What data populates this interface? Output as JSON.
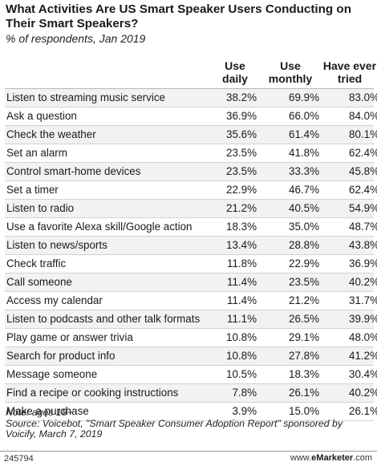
{
  "title": "What Activities Are US Smart Speaker Users Conducting on Their Smart Speakers?",
  "subtitle": "% of respondents, Jan 2019",
  "columns": [
    "Use daily",
    "Use monthly",
    "Have ever tried"
  ],
  "chart_data": {
    "type": "table",
    "title": "What Activities Are US Smart Speaker Users Conducting on Their Smart Speakers?",
    "subtitle": "% of respondents, Jan 2019",
    "columns": [
      "Use daily",
      "Use monthly",
      "Have ever tried"
    ],
    "rows": [
      {
        "label": "Listen to streaming music service",
        "values": [
          "38.2%",
          "69.9%",
          "83.0%"
        ]
      },
      {
        "label": "Ask a question",
        "values": [
          "36.9%",
          "66.0%",
          "84.0%"
        ]
      },
      {
        "label": "Check the weather",
        "values": [
          "35.6%",
          "61.4%",
          "80.1%"
        ]
      },
      {
        "label": "Set an alarm",
        "values": [
          "23.5%",
          "41.8%",
          "62.4%"
        ]
      },
      {
        "label": "Control smart-home devices",
        "values": [
          "23.5%",
          "33.3%",
          "45.8%"
        ]
      },
      {
        "label": "Set a timer",
        "values": [
          "22.9%",
          "46.7%",
          "62.4%"
        ]
      },
      {
        "label": "Listen to radio",
        "values": [
          "21.2%",
          "40.5%",
          "54.9%"
        ]
      },
      {
        "label": "Use a favorite Alexa skill/Google action",
        "values": [
          "18.3%",
          "35.0%",
          "48.7%"
        ]
      },
      {
        "label": "Listen to news/sports",
        "values": [
          "13.4%",
          "28.8%",
          "43.8%"
        ]
      },
      {
        "label": "Check traffic",
        "values": [
          "11.8%",
          "22.9%",
          "36.9%"
        ]
      },
      {
        "label": "Call someone",
        "values": [
          "11.4%",
          "23.5%",
          "40.2%"
        ]
      },
      {
        "label": "Access my calendar",
        "values": [
          "11.4%",
          "21.2%",
          "31.7%"
        ]
      },
      {
        "label": "Listen to podcasts and other talk formats",
        "values": [
          "11.1%",
          "26.5%",
          "39.9%"
        ]
      },
      {
        "label": "Play game or answer trivia",
        "values": [
          "10.8%",
          "29.1%",
          "48.0%"
        ]
      },
      {
        "label": "Search for product info",
        "values": [
          "10.8%",
          "27.8%",
          "41.2%"
        ]
      },
      {
        "label": "Message someone",
        "values": [
          "10.5%",
          "18.3%",
          "30.4%"
        ]
      },
      {
        "label": "Find a recipe or cooking instructions",
        "values": [
          "7.8%",
          "26.1%",
          "40.2%"
        ]
      },
      {
        "label": "Make a purchase",
        "values": [
          "3.9%",
          "15.0%",
          "26.1%"
        ]
      }
    ]
  },
  "notes": {
    "note": "Note: ages 18+",
    "source": "Source: Voicebot, \"Smart Speaker Consumer Adoption Report\" sponsored by Voicify, March 7, 2019"
  },
  "footer": {
    "id": "245794",
    "brand_prefix": "www.",
    "brand_name": "eMarketer",
    "brand_suffix": ".com"
  }
}
